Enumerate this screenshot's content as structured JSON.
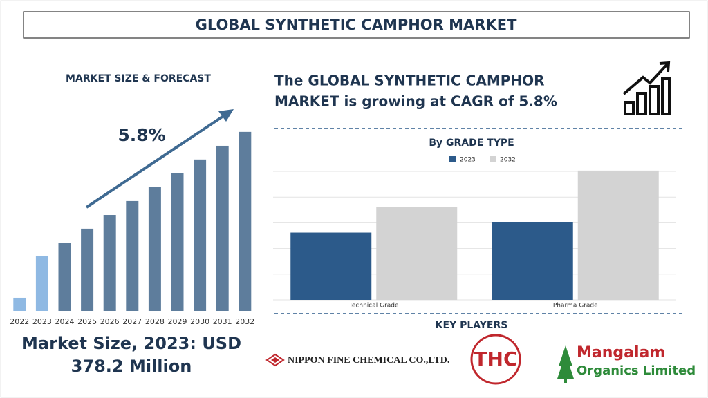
{
  "title": "GLOBAL SYNTHETIC CAMPHOR MARKET",
  "headline": {
    "line1": "The GLOBAL SYNTHETIC CAMPHOR",
    "line2": "MARKET is growing at CAGR of 5.8%"
  },
  "market_size": {
    "line1": "Market Size, 2023: USD",
    "line2": "378.2 Million"
  },
  "key_players": {
    "title": "KEY PLAYERS",
    "players": [
      "NIPPON FINE CHEMICAL CO.,LTD.",
      "THC",
      "Mangalam",
      "Organics Limited"
    ]
  },
  "chart_data": [
    {
      "type": "bar",
      "title": "MARKET SIZE & FORECAST",
      "annotation": "5.8%",
      "categories": [
        "2022",
        "2023",
        "2024",
        "2025",
        "2026",
        "2027",
        "2028",
        "2029",
        "2030",
        "2031",
        "2032"
      ],
      "values": [
        90,
        378.2,
        468,
        563,
        657,
        752,
        847,
        941,
        1036,
        1130,
        1225
      ],
      "colors": [
        "#8fb9e3",
        "#8fb9e3",
        "#5e7d9c",
        "#5e7d9c",
        "#5e7d9c",
        "#5e7d9c",
        "#5e7d9c",
        "#5e7d9c",
        "#5e7d9c",
        "#5e7d9c",
        "#5e7d9c"
      ],
      "ylim": [
        0,
        1300
      ]
    },
    {
      "type": "grouped-bar",
      "title": "By GRADE TYPE",
      "categories": [
        "Technical Grade",
        "Pharma Grade"
      ],
      "series": [
        {
          "name": "2023",
          "color": "#2c5a8a",
          "values": [
            2.62,
            3.03
          ]
        },
        {
          "name": "2032",
          "color": "#d3d3d3",
          "values": [
            3.62,
            5.03
          ]
        }
      ],
      "ylim": [
        0,
        5
      ],
      "gridlines": [
        0,
        1,
        2,
        3,
        4,
        5
      ],
      "grid": true
    }
  ]
}
